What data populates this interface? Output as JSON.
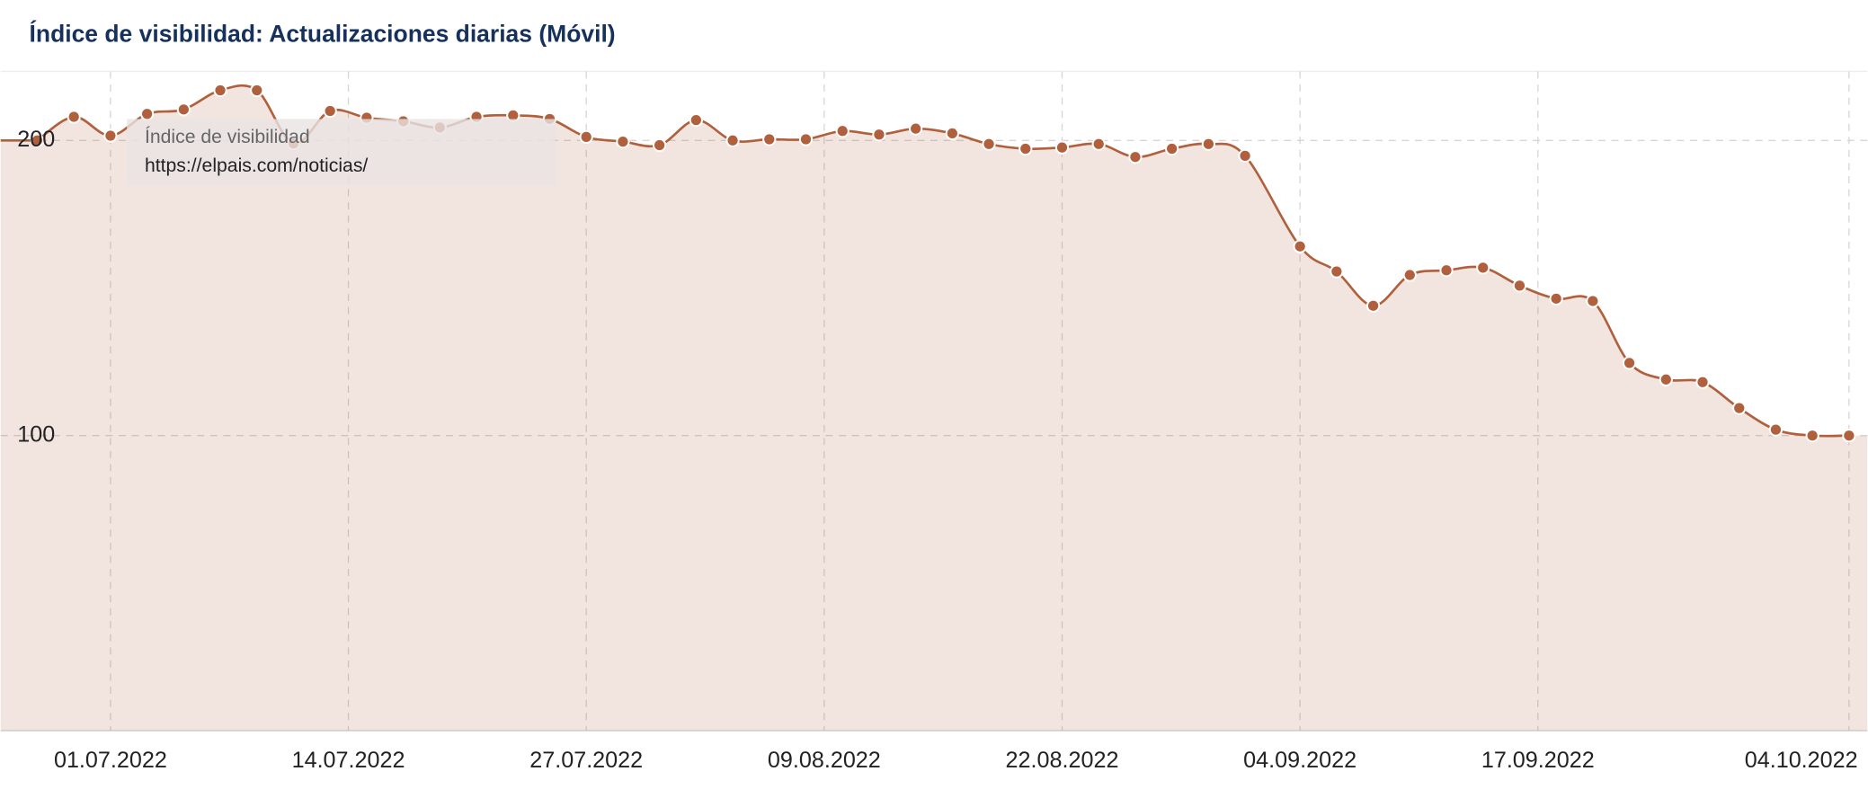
{
  "title": "Índice de visibilidad: Actualizaciones diarias (Móvil)",
  "chart_data": {
    "type": "area",
    "x": [
      "27.06.2022",
      "29.06.2022",
      "01.07.2022",
      "03.07.2022",
      "05.07.2022",
      "07.07.2022",
      "09.07.2022",
      "11.07.2022",
      "13.07.2022",
      "15.07.2022",
      "17.07.2022",
      "19.07.2022",
      "21.07.2022",
      "23.07.2022",
      "25.07.2022",
      "27.07.2022",
      "29.07.2022",
      "31.07.2022",
      "02.08.2022",
      "04.08.2022",
      "06.08.2022",
      "08.08.2022",
      "10.08.2022",
      "12.08.2022",
      "14.08.2022",
      "16.08.2022",
      "18.08.2022",
      "20.08.2022",
      "22.08.2022",
      "24.08.2022",
      "26.08.2022",
      "28.08.2022",
      "30.08.2022",
      "01.09.2022",
      "04.09.2022",
      "06.09.2022",
      "08.09.2022",
      "10.09.2022",
      "12.09.2022",
      "14.09.2022",
      "16.09.2022",
      "18.09.2022",
      "20.09.2022",
      "22.09.2022",
      "24.09.2022",
      "26.09.2022",
      "28.09.2022",
      "30.09.2022",
      "02.10.2022",
      "04.10.2022"
    ],
    "series": [
      {
        "name": "https://elpais.com/noticias/",
        "color": "#b0603c",
        "values": [
          200,
          208,
          201.6,
          209,
          210.5,
          217,
          217,
          199,
          210,
          207.7,
          206.5,
          204.4,
          208,
          208.5,
          207.3,
          201.2,
          199.6,
          198.4,
          206.9,
          200,
          200.4,
          200.4,
          203.2,
          202,
          204,
          202.4,
          198.8,
          197.2,
          197.6,
          198.8,
          194.4,
          197.2,
          198.8,
          194.8,
          164.1,
          155.6,
          144,
          154.4,
          156,
          156.9,
          150.8,
          146.4,
          145.6,
          124.6,
          119,
          118.1,
          109.3,
          102,
          100,
          100
        ]
      }
    ],
    "tooltip_title": "Índice de visibilidad",
    "xlim": [
      "25.06.2022",
      "05.10.2022"
    ],
    "xticks": [
      "01.07.2022",
      "14.07.2022",
      "27.07.2022",
      "09.08.2022",
      "22.08.2022",
      "04.09.2022",
      "17.09.2022",
      "04.10.2022"
    ],
    "ylim": [
      0,
      223.4
    ],
    "yticks": [
      100,
      200
    ],
    "grid": true
  }
}
